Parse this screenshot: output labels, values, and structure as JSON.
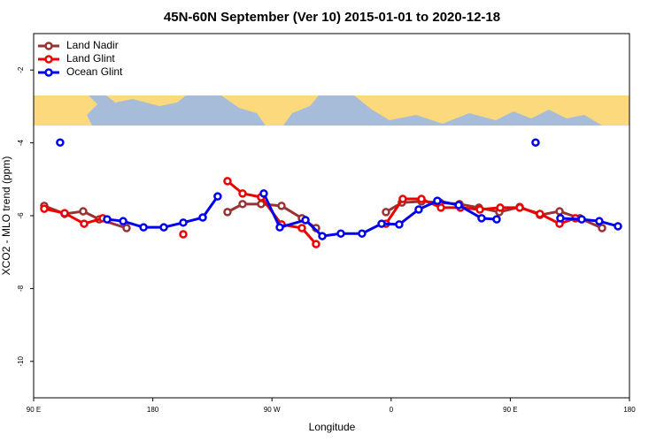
{
  "chart_data": {
    "type": "line",
    "title": "45N-60N September (Ver 10)   2015-01-01 to 2020-12-18",
    "x_label": "Longitude",
    "y_label": "XCO2 - MLO trend (ppm)",
    "xlim": [
      90,
      540
    ],
    "xticks": [
      {
        "value": 90,
        "label": "90 E"
      },
      180,
      {
        "value": 270,
        "label": "90 W"
      },
      {
        "value": 360,
        "label": "0"
      },
      {
        "value": 450,
        "label": "90 E"
      },
      {
        "value": 540,
        "label": "180"
      }
    ],
    "ylim": [
      -11,
      -1
    ],
    "yticks": [
      -2,
      -4,
      -6,
      -8,
      -10
    ],
    "legend": "top-left",
    "series": [
      {
        "name": "Land Nadir",
        "color": "#993333",
        "x": [
          98,
          113.4,
          127.4,
          139.5,
          160.2,
          null,
          236.4,
          247.8,
          261.8,
          277.2,
          292.6,
          303.3,
          null,
          356.1,
          368.1,
          382.9,
          396.9,
          411.6,
          426.3,
          441.7,
          457.1,
          472.4,
          487.2,
          502.5,
          519.3
        ],
        "values": [
          -5.73,
          -5.95,
          -5.88,
          -6.1,
          -6.34,
          null,
          -5.9,
          -5.68,
          -5.68,
          -5.73,
          -6.07,
          -6.34,
          null,
          -5.9,
          -5.64,
          -5.61,
          -5.64,
          -5.68,
          -5.78,
          -5.9,
          -5.76,
          -5.98,
          -5.88,
          -6.07,
          -6.34
        ]
      },
      {
        "name": "Land Glint",
        "color": "#ee0000",
        "x": [
          98,
          113.4,
          128.1,
          142.2,
          null,
          203,
          null,
          236.4,
          247.8,
          261.8,
          277.2,
          292.6,
          303.3,
          null,
          356.1,
          368.8,
          382.9,
          397.6,
          412.3,
          427,
          442.4,
          457.1,
          472.4,
          487.2,
          499.2
        ],
        "values": [
          -5.81,
          -5.93,
          -6.22,
          -6.07,
          null,
          -6.51,
          null,
          -5.05,
          -5.39,
          -5.49,
          -6.24,
          -6.34,
          -6.78,
          null,
          -6.22,
          -5.54,
          -5.54,
          -5.78,
          -5.78,
          -5.83,
          -5.78,
          -5.78,
          -5.95,
          -6.22,
          -6.07
        ]
      },
      {
        "name": "Ocean Glint",
        "color": "#0000ee",
        "x": [
          110,
          null,
          145.5,
          157.6,
          173,
          188.3,
          203,
          217.7,
          229,
          null,
          263.8,
          275.9,
          295.3,
          308,
          322,
          338,
          352.8,
          366.1,
          380.8,
          394.9,
          411,
          428.3,
          439.7,
          null,
          469.1,
          null,
          487.8,
          503.9,
          517.2,
          531.3
        ],
        "values": [
          -3.99,
          null,
          -6.1,
          -6.15,
          -6.32,
          -6.32,
          -6.19,
          -6.05,
          -5.47,
          null,
          -5.39,
          -6.32,
          -6.12,
          -6.56,
          -6.49,
          -6.49,
          -6.22,
          -6.24,
          -5.83,
          -5.59,
          -5.71,
          -6.07,
          -6.1,
          null,
          -3.99,
          null,
          -6.07,
          -6.1,
          -6.15,
          -6.29
        ]
      }
    ]
  }
}
